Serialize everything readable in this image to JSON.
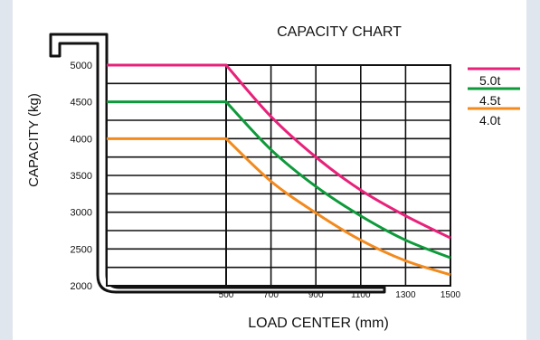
{
  "colors": {
    "c50": "#e8217a",
    "c45": "#0e9a3a",
    "c40": "#f28a1e"
  },
  "chart_data": {
    "type": "line",
    "title": "CAPACITY CHART",
    "xlabel": "LOAD CENTER (mm)",
    "ylabel": "CAPACITY (kg)",
    "xlim": [
      500,
      1500
    ],
    "ylim": [
      2000,
      5000
    ],
    "xticks": [
      "500",
      "700",
      "900",
      "1100",
      "1300",
      "1500"
    ],
    "yticks": [
      "5000",
      "4500",
      "4000",
      "3500",
      "3000",
      "2500",
      "2000"
    ],
    "legend_position": "right",
    "series": [
      {
        "name": "5.0t",
        "color": "#e8217a",
        "x": [
          0,
          500,
          700,
          900,
          1100,
          1300,
          1500
        ],
        "y": [
          5000,
          5000,
          4300,
          3750,
          3300,
          2950,
          2650
        ]
      },
      {
        "name": "4.5t",
        "color": "#0e9a3a",
        "x": [
          0,
          500,
          700,
          900,
          1100,
          1300,
          1500
        ],
        "y": [
          4500,
          4500,
          3850,
          3350,
          2950,
          2620,
          2380
        ]
      },
      {
        "name": "4.0t",
        "color": "#f28a1e",
        "x": [
          0,
          500,
          700,
          900,
          1100,
          1300,
          1500
        ],
        "y": [
          4000,
          4000,
          3420,
          2990,
          2620,
          2340,
          2150
        ]
      }
    ]
  }
}
